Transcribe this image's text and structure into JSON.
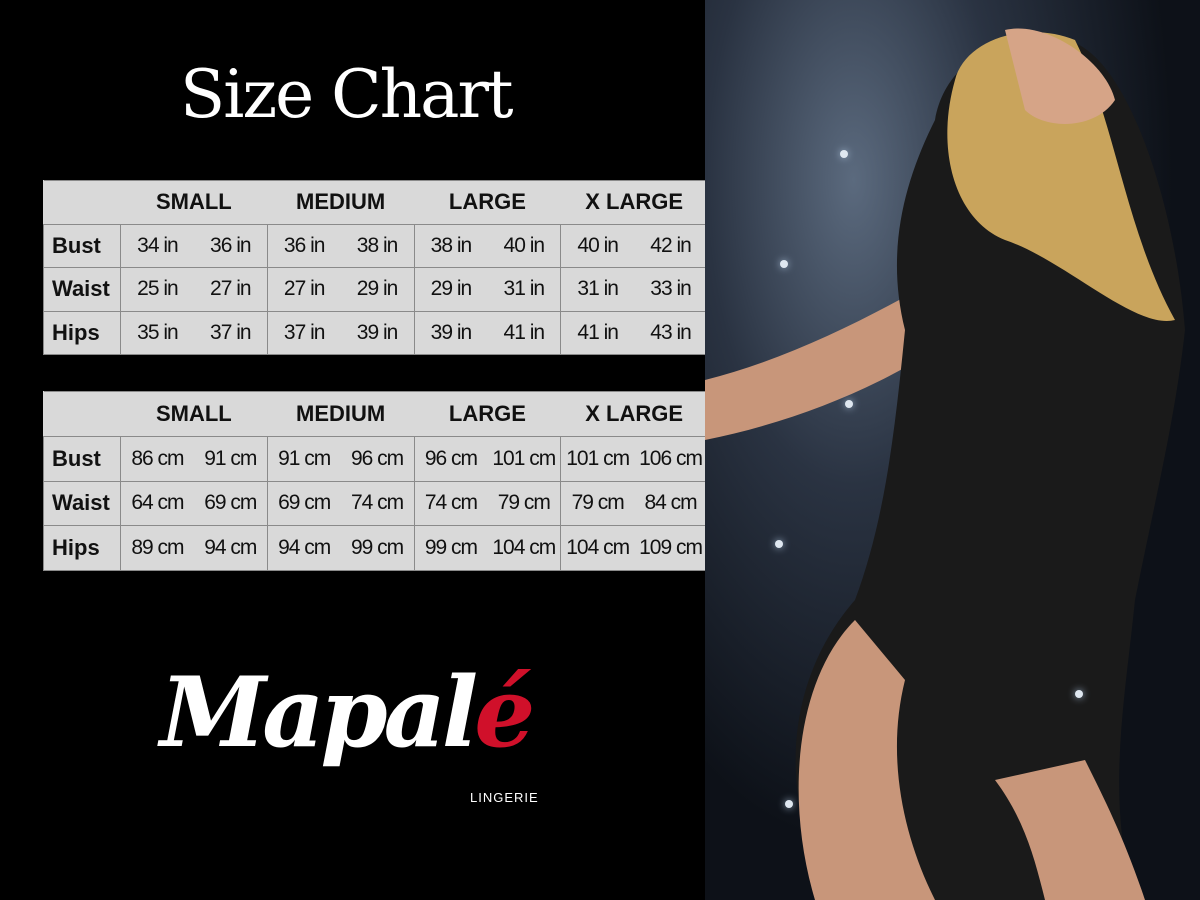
{
  "title": "Size Chart",
  "colors": {
    "background": "#000000",
    "table_bg": "#d9d9d9",
    "logo_accent": "#d0102a"
  },
  "inches_table": {
    "headers": [
      "SMALL",
      "MEDIUM",
      "LARGE",
      "X LARGE"
    ],
    "rows": [
      {
        "label": "Bust",
        "values": [
          "34 in",
          "36 in",
          "36 in",
          "38 in",
          "38 in",
          "40 in",
          "40 in",
          "42 in"
        ]
      },
      {
        "label": "Waist",
        "values": [
          "25 in",
          "27 in",
          "27 in",
          "29 in",
          "29 in",
          "31 in",
          "31 in",
          "33 in"
        ]
      },
      {
        "label": "Hips",
        "values": [
          "35 in",
          "37 in",
          "37 in",
          "39 in",
          "39 in",
          "41 in",
          "41 in",
          "43 in"
        ]
      }
    ]
  },
  "cm_table": {
    "headers": [
      "SMALL",
      "MEDIUM",
      "LARGE",
      "X LARGE"
    ],
    "rows": [
      {
        "label": "Bust",
        "values": [
          "86 cm",
          "91 cm",
          "91 cm",
          "96 cm",
          "96 cm",
          "101 cm",
          "101 cm",
          "106 cm"
        ]
      },
      {
        "label": "Waist",
        "values": [
          "64 cm",
          "69 cm",
          "69 cm",
          "74 cm",
          "74 cm",
          "79 cm",
          "79 cm",
          "84 cm"
        ]
      },
      {
        "label": "Hips",
        "values": [
          "89 cm",
          "94 cm",
          "94 cm",
          "99 cm",
          "99 cm",
          "104 cm",
          "104 cm",
          "109 cm"
        ]
      }
    ]
  },
  "logo": {
    "brand": "Mapalé",
    "brand_main": "Mapal",
    "brand_accent": "é",
    "subtitle": "LINGERIE"
  }
}
